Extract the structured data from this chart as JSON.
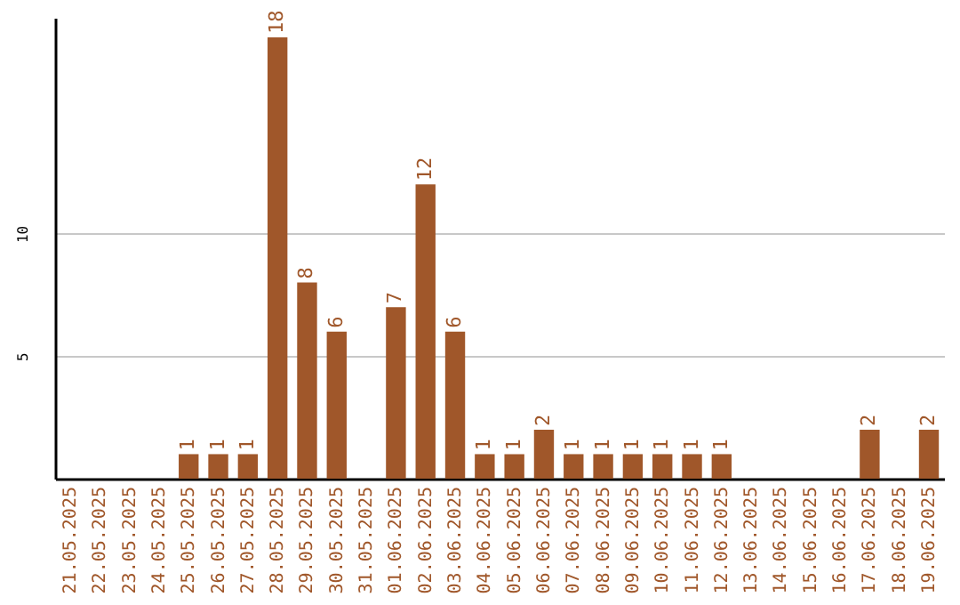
{
  "chart_data": {
    "type": "bar",
    "categories": [
      "21.05.2025",
      "22.05.2025",
      "23.05.2025",
      "24.05.2025",
      "25.05.2025",
      "26.05.2025",
      "27.05.2025",
      "28.05.2025",
      "29.05.2025",
      "30.05.2025",
      "31.05.2025",
      "01.06.2025",
      "02.06.2025",
      "03.06.2025",
      "04.06.2025",
      "05.06.2025",
      "06.06.2025",
      "07.06.2025",
      "08.06.2025",
      "09.06.2025",
      "10.06.2025",
      "11.06.2025",
      "12.06.2025",
      "13.06.2025",
      "14.06.2025",
      "15.06.2025",
      "16.06.2025",
      "17.06.2025",
      "18.06.2025",
      "19.06.2025"
    ],
    "values": [
      0,
      0,
      0,
      0,
      1,
      1,
      1,
      18,
      8,
      6,
      0,
      7,
      12,
      6,
      1,
      1,
      2,
      1,
      1,
      1,
      1,
      1,
      1,
      0,
      0,
      0,
      0,
      2,
      0,
      2
    ],
    "value_labels": [
      null,
      null,
      null,
      null,
      "1",
      "1",
      "1",
      "18",
      "8",
      "6",
      null,
      "7",
      "12",
      "6",
      "1",
      "1",
      "2",
      "1",
      "1",
      "1",
      "1",
      "1",
      "1",
      null,
      null,
      null,
      null,
      "2",
      null,
      "2"
    ],
    "color": "#a0572a",
    "ylim": [
      0,
      18.8
    ],
    "yticks": [
      5,
      10
    ],
    "grid": "y"
  }
}
